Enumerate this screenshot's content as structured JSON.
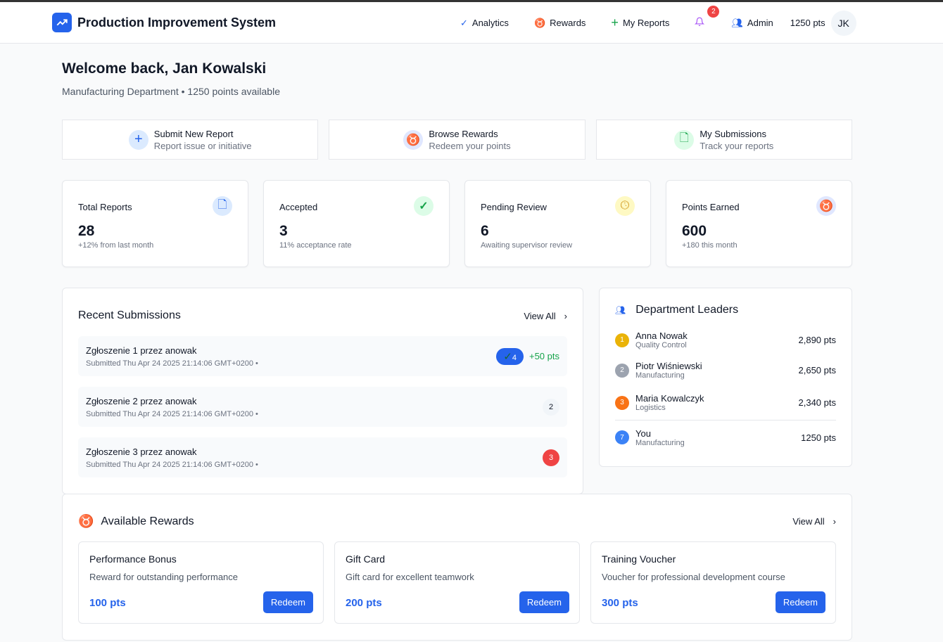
{
  "nav": {
    "brand": "Production Improvement System",
    "items": [
      {
        "label": "Analytics",
        "icon": "check-circle-icon"
      },
      {
        "label": "Rewards",
        "icon": "award-icon"
      },
      {
        "label": "My Reports",
        "icon": "plus-icon"
      }
    ],
    "notifications": "2",
    "admin": "Admin",
    "points": "1250 pts",
    "avatar": "JK"
  },
  "welcome": {
    "title": "Welcome back, Jan Kowalski",
    "subtitle": "Manufacturing Department • 1250 points available"
  },
  "quick": [
    {
      "title": "Submit New Report",
      "sub": "Report issue or initiative"
    },
    {
      "title": "Browse Rewards",
      "sub": "Redeem your points"
    },
    {
      "title": "My Submissions",
      "sub": "Track your reports"
    }
  ],
  "stats": [
    {
      "label": "Total Reports",
      "value": "28",
      "sub": "+12% from last month"
    },
    {
      "label": "Accepted",
      "value": "3",
      "sub": "11% acceptance rate"
    },
    {
      "label": "Pending Review",
      "value": "6",
      "sub": "Awaiting supervisor review"
    },
    {
      "label": "Points Earned",
      "value": "600",
      "sub": "+180 this month"
    }
  ],
  "recent": {
    "title": "Recent Submissions",
    "view_all": "View All",
    "items": [
      {
        "title": "Zgłoszenie 1 przez anowak",
        "date": "Submitted Thu Apr 24 2025 21:14:06 GMT+0200 •",
        "badge": "4",
        "points": "+50 pts"
      },
      {
        "title": "Zgłoszenie 2 przez anowak",
        "date": "Submitted Thu Apr 24 2025 21:14:06 GMT+0200 •",
        "badge": "2"
      },
      {
        "title": "Zgłoszenie 3 przez anowak",
        "date": "Submitted Thu Apr 24 2025 21:14:06 GMT+0200 •",
        "badge": "3"
      }
    ]
  },
  "leaders": {
    "title": "Department Leaders",
    "items": [
      {
        "rank": "1",
        "name": "Anna Nowak",
        "dept": "Quality Control",
        "pts": "2,890 pts",
        "color": "#eab308"
      },
      {
        "rank": "2",
        "name": "Piotr Wiśniewski",
        "dept": "Manufacturing",
        "pts": "2,650 pts",
        "color": "#9ca3af"
      },
      {
        "rank": "3",
        "name": "Maria Kowalczyk",
        "dept": "Logistics",
        "pts": "2,340 pts",
        "color": "#f97316"
      },
      {
        "rank": "7",
        "name": "You",
        "dept": "Manufacturing",
        "pts": "1250 pts",
        "color": "#3b82f6"
      }
    ]
  },
  "rewards": {
    "title": "Available Rewards",
    "view_all": "View All",
    "items": [
      {
        "title": "Performance Bonus",
        "desc": "Reward for outstanding performance",
        "pts": "100 pts",
        "button": "Redeem"
      },
      {
        "title": "Gift Card",
        "desc": "Gift card for excellent teamwork",
        "pts": "200 pts",
        "button": "Redeem"
      },
      {
        "title": "Training Voucher",
        "desc": "Voucher for professional development course",
        "pts": "300 pts",
        "button": "Redeem"
      }
    ]
  }
}
